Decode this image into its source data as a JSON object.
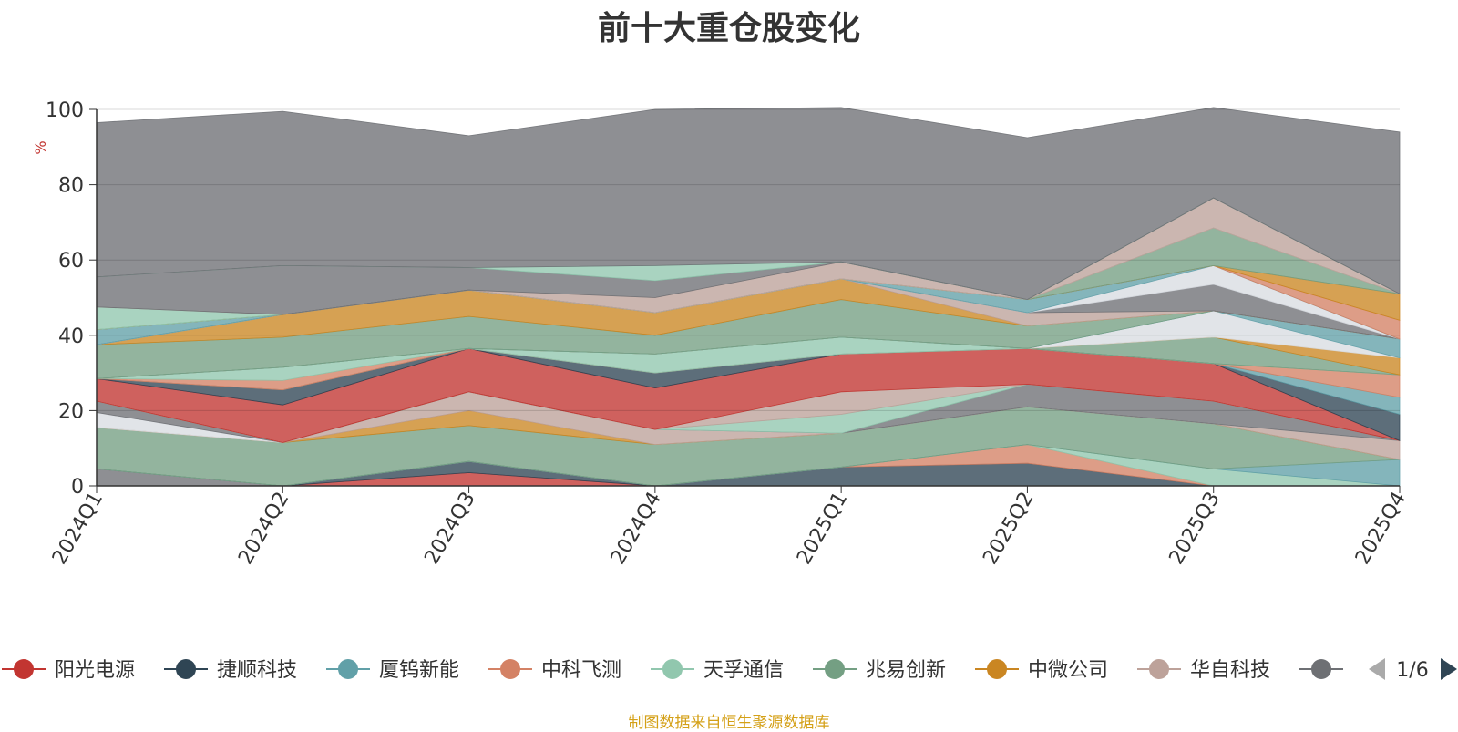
{
  "chart_data": {
    "type": "area",
    "stacked": true,
    "title": "前十大重仓股变化",
    "ylabel": "%",
    "ylim": [
      0,
      100
    ],
    "yticks": [
      0,
      20,
      40,
      60,
      80,
      100
    ],
    "grid": true,
    "categories": [
      "2024Q1",
      "2024Q2",
      "2024Q3",
      "2024Q4",
      "2025Q1",
      "2025Q2",
      "2025Q3",
      "2025Q4"
    ],
    "series": [
      {
        "name": "阳光电源",
        "color": "#c23531"
      },
      {
        "name": "捷顺科技",
        "color": "#2f4554"
      },
      {
        "name": "厦钨新能",
        "color": "#61a0a8"
      },
      {
        "name": "中科飞测",
        "color": "#d48265"
      },
      {
        "name": "天孚通信",
        "color": "#91c7ae"
      },
      {
        "name": "兆易创新",
        "color": "#749f83"
      },
      {
        "name": "中微公司",
        "color": "#ca8622"
      },
      {
        "name": "华自科技",
        "color": "#bda29a"
      },
      {
        "name": "",
        "color": "#6e7074"
      }
    ],
    "layers": [
      {
        "color": "#6e7074",
        "values": [
          4.5,
          0,
          0,
          0,
          0,
          0,
          0,
          0
        ]
      },
      {
        "color": "#c23531",
        "values": [
          0,
          0,
          3.5,
          0,
          0,
          0,
          0,
          0
        ]
      },
      {
        "color": "#2f4554",
        "values": [
          0,
          0,
          3,
          0,
          5,
          6,
          0,
          0
        ]
      },
      {
        "color": "#d48265",
        "values": [
          0,
          0,
          0,
          0,
          0,
          5,
          0,
          0
        ]
      },
      {
        "color": "#91c7ae",
        "values": [
          0,
          0,
          0,
          0,
          0,
          0,
          4.5,
          0
        ]
      },
      {
        "color": "#61a0a8",
        "values": [
          0,
          0,
          0,
          0,
          0,
          0,
          0,
          7
        ]
      },
      {
        "color": "#749f83",
        "values": [
          11,
          11.5,
          9.5,
          11,
          9,
          10,
          12,
          0
        ]
      },
      {
        "color": "#ca8622",
        "values": [
          0,
          0,
          4,
          0,
          0,
          0,
          0,
          0
        ]
      },
      {
        "color": "#bda29a",
        "values": [
          0,
          0,
          5,
          4,
          0,
          0,
          0,
          5
        ]
      },
      {
        "color": "#d9dde2",
        "values": [
          4,
          0,
          0,
          0,
          0,
          0,
          0,
          0
        ]
      },
      {
        "color": "#6e7074",
        "values": [
          3,
          0,
          0,
          0,
          0,
          6,
          6,
          0
        ]
      },
      {
        "color": "#91c7ae",
        "values": [
          0,
          0,
          0,
          0,
          5,
          0,
          0,
          0
        ]
      },
      {
        "color": "#bda29a",
        "values": [
          0,
          0,
          0,
          0,
          6,
          0,
          0,
          0
        ]
      },
      {
        "color": "#c23531",
        "values": [
          6,
          10,
          11.5,
          11,
          10,
          9.5,
          10,
          0
        ]
      },
      {
        "color": "#2f4554",
        "values": [
          0,
          4,
          0,
          4,
          0,
          0,
          0,
          7
        ]
      },
      {
        "color": "#61a0a8",
        "values": [
          0,
          0,
          0,
          0,
          0,
          0,
          0,
          4.5
        ]
      },
      {
        "color": "#d48265",
        "values": [
          0,
          2.5,
          0,
          0,
          0,
          0,
          0,
          6
        ]
      },
      {
        "color": "#91c7ae",
        "values": [
          0,
          3.5,
          0,
          5,
          4.5,
          0,
          0,
          0
        ]
      },
      {
        "color": "#749f83",
        "values": [
          0,
          0,
          0,
          0,
          0,
          0,
          7,
          0
        ]
      },
      {
        "color": "#ca8622",
        "values": [
          0,
          0,
          0,
          0,
          0,
          0,
          0,
          4.5
        ]
      },
      {
        "color": "#d9dde2",
        "values": [
          0,
          0,
          0,
          0,
          0,
          0,
          7,
          0
        ]
      },
      {
        "color": "#61a0a8",
        "values": [
          0,
          0,
          0,
          0,
          0,
          0,
          0,
          5
        ]
      },
      {
        "color": "#749f83",
        "values": [
          9,
          8,
          8.5,
          5,
          10,
          6,
          0,
          0
        ]
      },
      {
        "color": "#ca8622",
        "values": [
          0,
          6,
          7,
          6,
          5.5,
          0,
          0,
          0
        ]
      },
      {
        "color": "#bda29a",
        "values": [
          0,
          0,
          0,
          0,
          0,
          3.5,
          0,
          0
        ]
      },
      {
        "color": "#6e7074",
        "values": [
          0,
          0,
          0,
          0,
          0,
          0,
          7,
          0
        ]
      },
      {
        "color": "#d9dde2",
        "values": [
          0,
          0,
          0,
          0,
          0,
          0,
          5,
          0
        ]
      },
      {
        "color": "#61a0a8",
        "values": [
          4,
          0,
          0,
          0,
          0,
          3.5,
          0,
          0
        ]
      },
      {
        "color": "#d48265",
        "values": [
          0,
          0,
          0,
          0,
          0,
          0,
          0,
          5
        ]
      },
      {
        "color": "#ca8622",
        "values": [
          0,
          0,
          0,
          0,
          0,
          0,
          0,
          7
        ]
      },
      {
        "color": "#749f83",
        "values": [
          0,
          0,
          0,
          0,
          0,
          0,
          10,
          0
        ]
      },
      {
        "color": "#91c7ae",
        "values": [
          6,
          0,
          0,
          0,
          0,
          0,
          0,
          0
        ]
      },
      {
        "color": "#bda29a",
        "values": [
          0,
          0,
          0,
          4,
          4.5,
          0,
          8,
          0
        ]
      },
      {
        "color": "#6e7074",
        "values": [
          8,
          13,
          6,
          4.5,
          0,
          0,
          0,
          0
        ]
      },
      {
        "color": "#91c7ae",
        "values": [
          0,
          0,
          0,
          4,
          0,
          0,
          0,
          0
        ]
      },
      {
        "color": "#6e7074",
        "values": [
          41,
          41,
          35,
          41.5,
          41,
          43,
          24,
          43
        ]
      }
    ]
  },
  "legend": {
    "items": [
      {
        "label": "阳光电源",
        "color": "#c23531"
      },
      {
        "label": "捷顺科技",
        "color": "#2f4554"
      },
      {
        "label": "厦钨新能",
        "color": "#61a0a8"
      },
      {
        "label": "中科飞测",
        "color": "#d48265"
      },
      {
        "label": "天孚通信",
        "color": "#91c7ae"
      },
      {
        "label": "兆易创新",
        "color": "#749f83"
      },
      {
        "label": "中微公司",
        "color": "#ca8622"
      },
      {
        "label": "华自科技",
        "color": "#bda29a"
      },
      {
        "label": "",
        "color": "#6e7074"
      }
    ],
    "page_text": "1/6",
    "prev_icon": "triangle-left-icon",
    "next_icon": "triangle-right-icon",
    "prev_color": "#aaaaaa",
    "next_color": "#2f4554"
  },
  "source_note": "制图数据来自恒生聚源数据库"
}
